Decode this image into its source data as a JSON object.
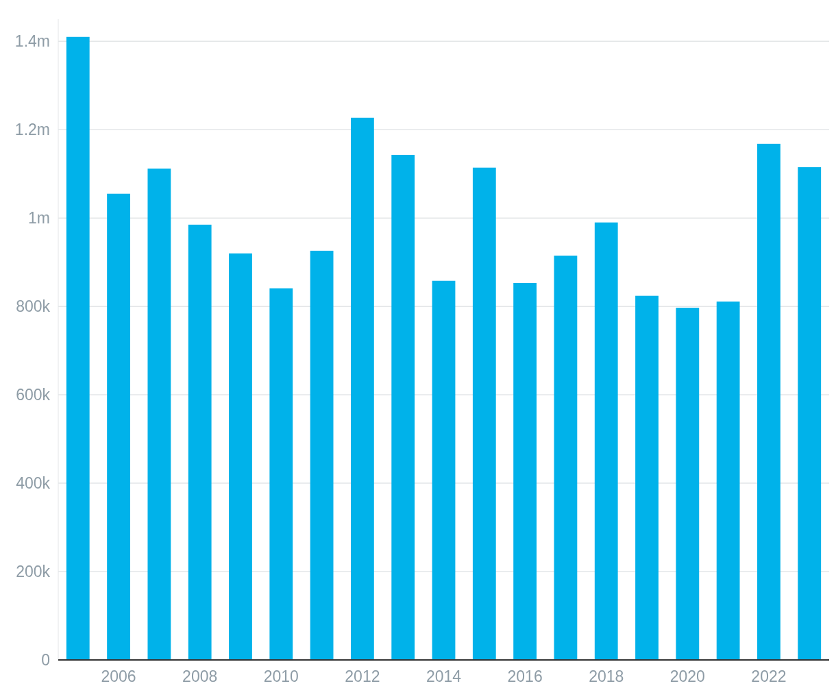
{
  "chart_data": {
    "type": "bar",
    "categories": [
      null,
      "2006",
      null,
      "2008",
      null,
      "2010",
      null,
      "2012",
      null,
      "2014",
      null,
      "2016",
      null,
      "2018",
      null,
      "2020",
      null,
      "2022",
      null
    ],
    "values": [
      1410000,
      1055000,
      1112000,
      985000,
      920000,
      841000,
      926000,
      1227000,
      1143000,
      858000,
      1114000,
      853000,
      915000,
      990000,
      824000,
      797000,
      811000,
      1168000,
      1115000
    ],
    "color": "#00b2ea",
    "ylim": [
      0,
      1450000
    ],
    "yticks": [
      0,
      {
        "value": 200000,
        "label": "200k"
      },
      {
        "value": 400000,
        "label": "400k"
      },
      {
        "value": 600000,
        "label": "600k"
      },
      {
        "value": 800000,
        "label": "800k"
      },
      {
        "value": 1000000,
        "label": "1m"
      },
      {
        "value": 1200000,
        "label": "1.2m"
      },
      {
        "value": 1400000,
        "label": "1.4m"
      }
    ],
    "grid": "y"
  }
}
